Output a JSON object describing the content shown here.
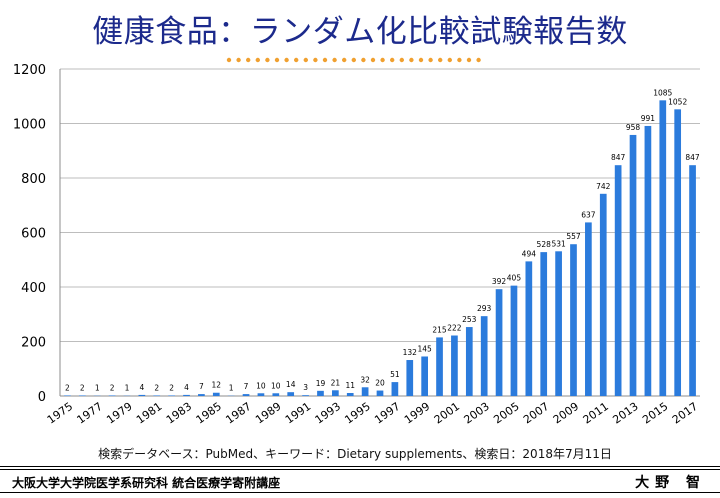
{
  "header": {
    "title": "健康食品：ランダム化比較試験報告数"
  },
  "source_note": "検索データベース：PubMed、キーワード：Dietary supplements、検索日：2018年7月11日",
  "footer": {
    "affiliation": "大阪大学大学院医学系研究科 統合医療学寄附講座",
    "author": "大野 智"
  },
  "colors": {
    "bar": "#2b7bdc",
    "title": "#1c2a8c",
    "accent_dots": "#f0a030"
  },
  "chart_data": {
    "type": "bar",
    "title": "",
    "xlabel": "",
    "ylabel": "",
    "ylim": [
      0,
      1200
    ],
    "yticks": [
      0,
      200,
      400,
      600,
      800,
      1000,
      1200
    ],
    "grid": true,
    "legend": "none",
    "categories": [
      "1975",
      "1976",
      "1977",
      "1978",
      "1979",
      "1980",
      "1981",
      "1982",
      "1983",
      "1984",
      "1985",
      "1986",
      "1987",
      "1988",
      "1989",
      "1990",
      "1991",
      "1992",
      "1993",
      "1994",
      "1995",
      "1996",
      "1997",
      "1998",
      "1999",
      "2000",
      "2001",
      "2002",
      "2003",
      "2004",
      "2005",
      "2006",
      "2007",
      "2008",
      "2009",
      "2010",
      "2011",
      "2012",
      "2013",
      "2014",
      "2015",
      "2016",
      "2017"
    ],
    "xtick_labels": [
      "1975",
      "1977",
      "1979",
      "1981",
      "1983",
      "1985",
      "1987",
      "1989",
      "1991",
      "1993",
      "1995",
      "1997",
      "1999",
      "2001",
      "2003",
      "2005",
      "2007",
      "2009",
      "2011",
      "2013",
      "2015",
      "2017"
    ],
    "values": [
      2,
      2,
      1,
      2,
      1,
      4,
      2,
      2,
      4,
      7,
      12,
      1,
      7,
      10,
      10,
      14,
      3,
      19,
      21,
      11,
      32,
      20,
      51,
      132,
      145,
      215,
      222,
      253,
      293,
      392,
      405,
      494,
      528,
      531,
      557,
      637,
      742,
      847,
      958,
      991,
      1085,
      1052,
      847
    ]
  }
}
